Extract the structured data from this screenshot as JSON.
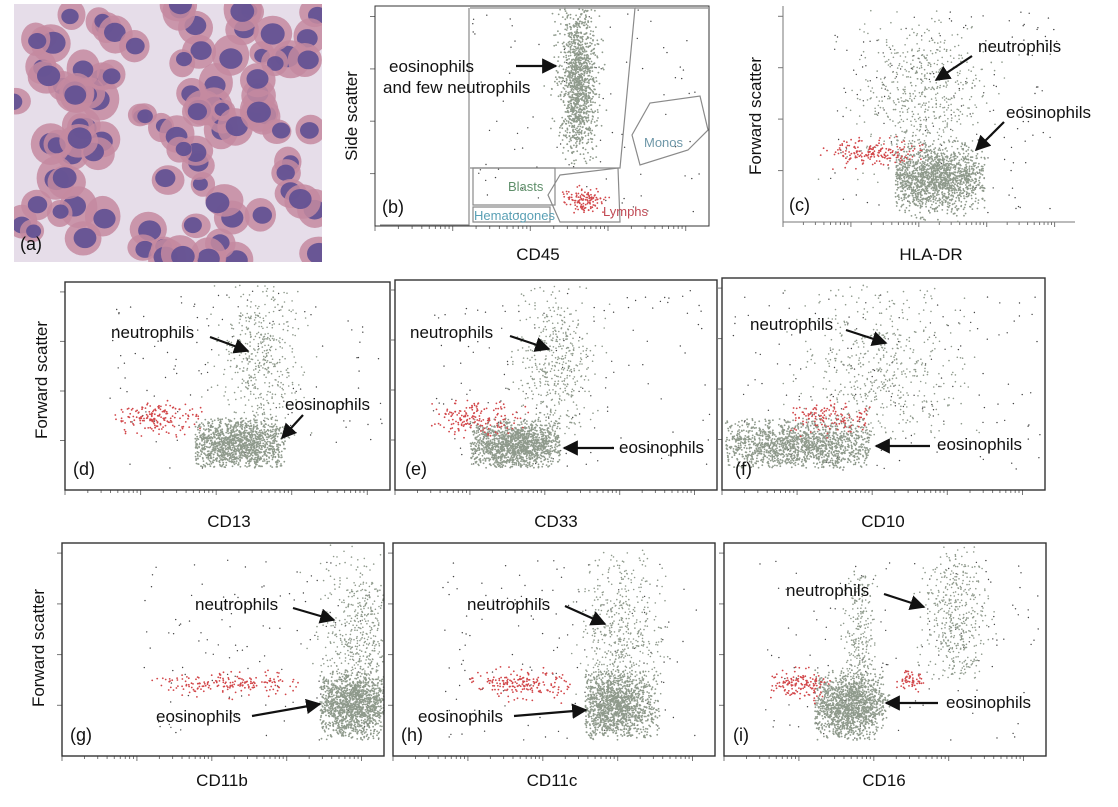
{
  "panels": [
    {
      "letter": "(a)",
      "kind": "micrograph"
    },
    {
      "letter": "(b)",
      "xlabel": "CD45",
      "ylabel": "Side scatter",
      "annotations": [
        "eosinophils",
        "and few neutrophils"
      ],
      "gates": [
        "Blasts",
        "Hematogones",
        "Lymphs",
        "Monos"
      ]
    },
    {
      "letter": "(c)",
      "xlabel": "HLA-DR",
      "ylabel": "Forward scatter",
      "annotations": [
        "neutrophils",
        "eosinophils"
      ]
    },
    {
      "letter": "(d)",
      "xlabel": "CD13",
      "ylabel": "Forward scatter",
      "annotations": [
        "neutrophils",
        "eosinophils"
      ]
    },
    {
      "letter": "(e)",
      "xlabel": "CD33",
      "ylabel": "",
      "annotations": [
        "neutrophils",
        "eosinophils"
      ]
    },
    {
      "letter": "(f)",
      "xlabel": "CD10",
      "ylabel": "",
      "annotations": [
        "neutrophils",
        "eosinophils"
      ]
    },
    {
      "letter": "(g)",
      "xlabel": "CD11b",
      "ylabel": "Forward scatter",
      "annotations": [
        "neutrophils",
        "eosinophils"
      ]
    },
    {
      "letter": "(h)",
      "xlabel": "CD11c",
      "ylabel": "",
      "annotations": [
        "neutrophils",
        "eosinophils"
      ]
    },
    {
      "letter": "(i)",
      "xlabel": "CD16",
      "ylabel": "",
      "annotations": [
        "neutrophils",
        "eosinophils"
      ]
    }
  ],
  "colors": {
    "gray_population": "#8f9a8c",
    "red_population": "#d2474a",
    "gate_blasts": "#5f8f6a",
    "gate_hematogones": "#5aa0b5",
    "gate_lymphs": "#c04a55",
    "gate_monos": "#6e97a8",
    "frame": "#333333",
    "cell_nucleus": "#5e4f92",
    "cell_cytoplasm": "#c48aa0",
    "smear_background": "#e8e2ee"
  }
}
